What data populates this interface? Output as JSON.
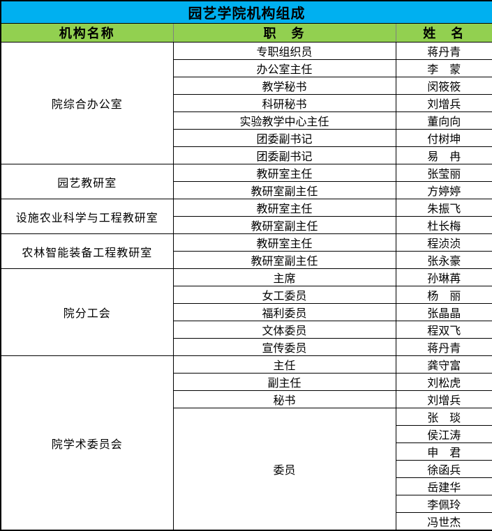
{
  "title": "园艺学院机构组成",
  "colors": {
    "title_bg": "#00B0F0",
    "header_bg": "#92D050",
    "border": "#000000",
    "header_divider": "#7f7f7f",
    "text": "#000000"
  },
  "header": {
    "org": "机构名称",
    "position": "职　务",
    "name": "姓　名"
  },
  "sections": [
    {
      "org": "院综合办公室",
      "rows": [
        {
          "position": "专职组织员",
          "name": "蒋丹青"
        },
        {
          "position": "办公室主任",
          "name": "李　蒙"
        },
        {
          "position": "教学秘书",
          "name": "闵筱筱"
        },
        {
          "position": "科研秘书",
          "name": "刘增兵"
        },
        {
          "position": "实验教学中心主任",
          "name": "董向向"
        },
        {
          "position": "团委副书记",
          "name": "付树坤"
        },
        {
          "position": "团委副书记",
          "name": "易　冉"
        }
      ]
    },
    {
      "org": "园艺教研室",
      "rows": [
        {
          "position": "教研室主任",
          "name": "张莹丽"
        },
        {
          "position": "教研室副主任",
          "name": "方婷婷"
        }
      ]
    },
    {
      "org": "设施农业科学与工程教研室",
      "rows": [
        {
          "position": "教研室主任",
          "name": "朱振飞"
        },
        {
          "position": "教研室副主任",
          "name": "杜长梅"
        }
      ]
    },
    {
      "org": "农林智能装备工程教研室",
      "rows": [
        {
          "position": "教研室主任",
          "name": "程浈浈"
        },
        {
          "position": "教研室副主任",
          "name": "张永豪"
        }
      ]
    },
    {
      "org": "院分工会",
      "rows": [
        {
          "position": "主席",
          "name": "孙琳苒"
        },
        {
          "position": "女工委员",
          "name": "杨　丽"
        },
        {
          "position": "福利委员",
          "name": "张晶晶"
        },
        {
          "position": "文体委员",
          "name": "程双飞"
        },
        {
          "position": "宣传委员",
          "name": "蒋丹青"
        }
      ]
    },
    {
      "org": "院学术委员会",
      "rows": [
        {
          "position": "主任",
          "name": "龚守富"
        },
        {
          "position": "副主任",
          "name": "刘松虎"
        },
        {
          "position": "秘书",
          "name": "刘增兵"
        }
      ],
      "merged": {
        "position": "委员",
        "names": [
          "张　琰",
          "侯江涛",
          "申　君",
          "徐函兵",
          "岳建华",
          "李佩玲",
          "冯世杰"
        ]
      }
    }
  ]
}
